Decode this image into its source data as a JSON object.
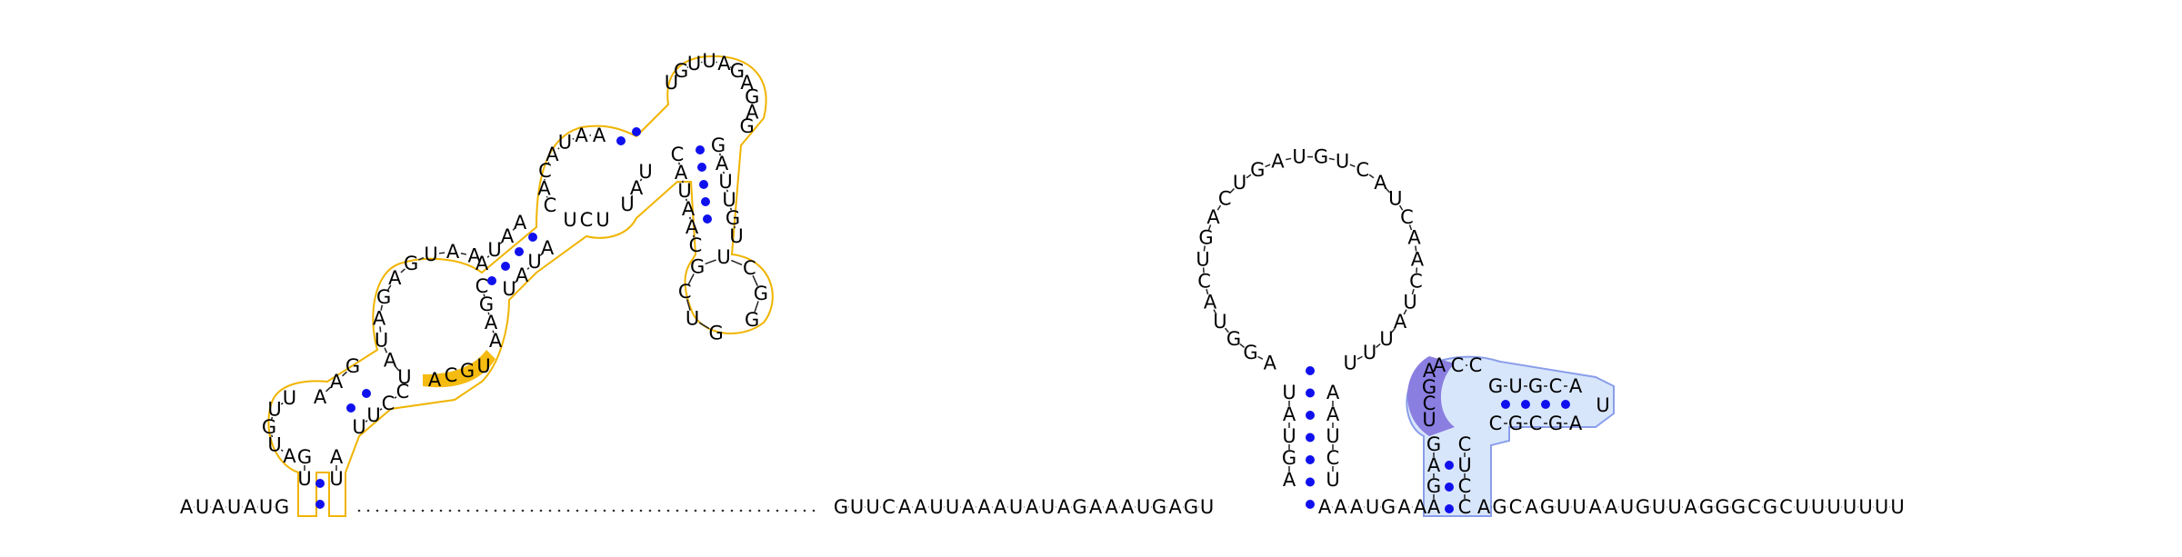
{
  "colors": {
    "base_pair": "#1010ee",
    "backbone": "#222222",
    "domain1_fill": "#fbf1dc",
    "domain1_stroke": "#f0b400",
    "domain1_highlight": "#f5bb10",
    "domain2_fill": "#d8e6fb",
    "domain2_stroke": "#8a9eea",
    "domain2_highlight": "#8a7ee0"
  },
  "sequence": {
    "five_prime_tail": "AUAUAUG",
    "middle_segment": "GUUCAAUUAAAUAUAGAAAUGAGU",
    "linker_after_hairpin": "AAAUGAA",
    "three_prime_tail": "AGCAGUUAAUGUUAGGGCGCUUUUUUU"
  },
  "domain1": {
    "stem_left_strands": [
      "UUAAG",
      "UAUAGAGUAA",
      "UAAUCAC",
      "AUAA"
    ],
    "stem_right_strands": [
      "AUGG",
      "UUCCAGC",
      "AAGC",
      "UAUUCU",
      "AUCA"
    ],
    "terminal_loop": "UGUUAGAGAG",
    "side_hairpin_loop": "GUCGUCGG",
    "highlight": "ACGU"
  },
  "hairpin": {
    "stem_left": "AGUAU",
    "stem_right": "UCUAA",
    "loop": "AGGUACUGACUGAUGUCAUCAACUAUUU"
  },
  "domain2": {
    "stem_left": "AGAG",
    "stem_right": "CCUC",
    "inner_stem_top": "GUGCA",
    "inner_stem_bottom": "CGCGA",
    "inner_loop": "U",
    "highlight": "AGCU"
  }
}
